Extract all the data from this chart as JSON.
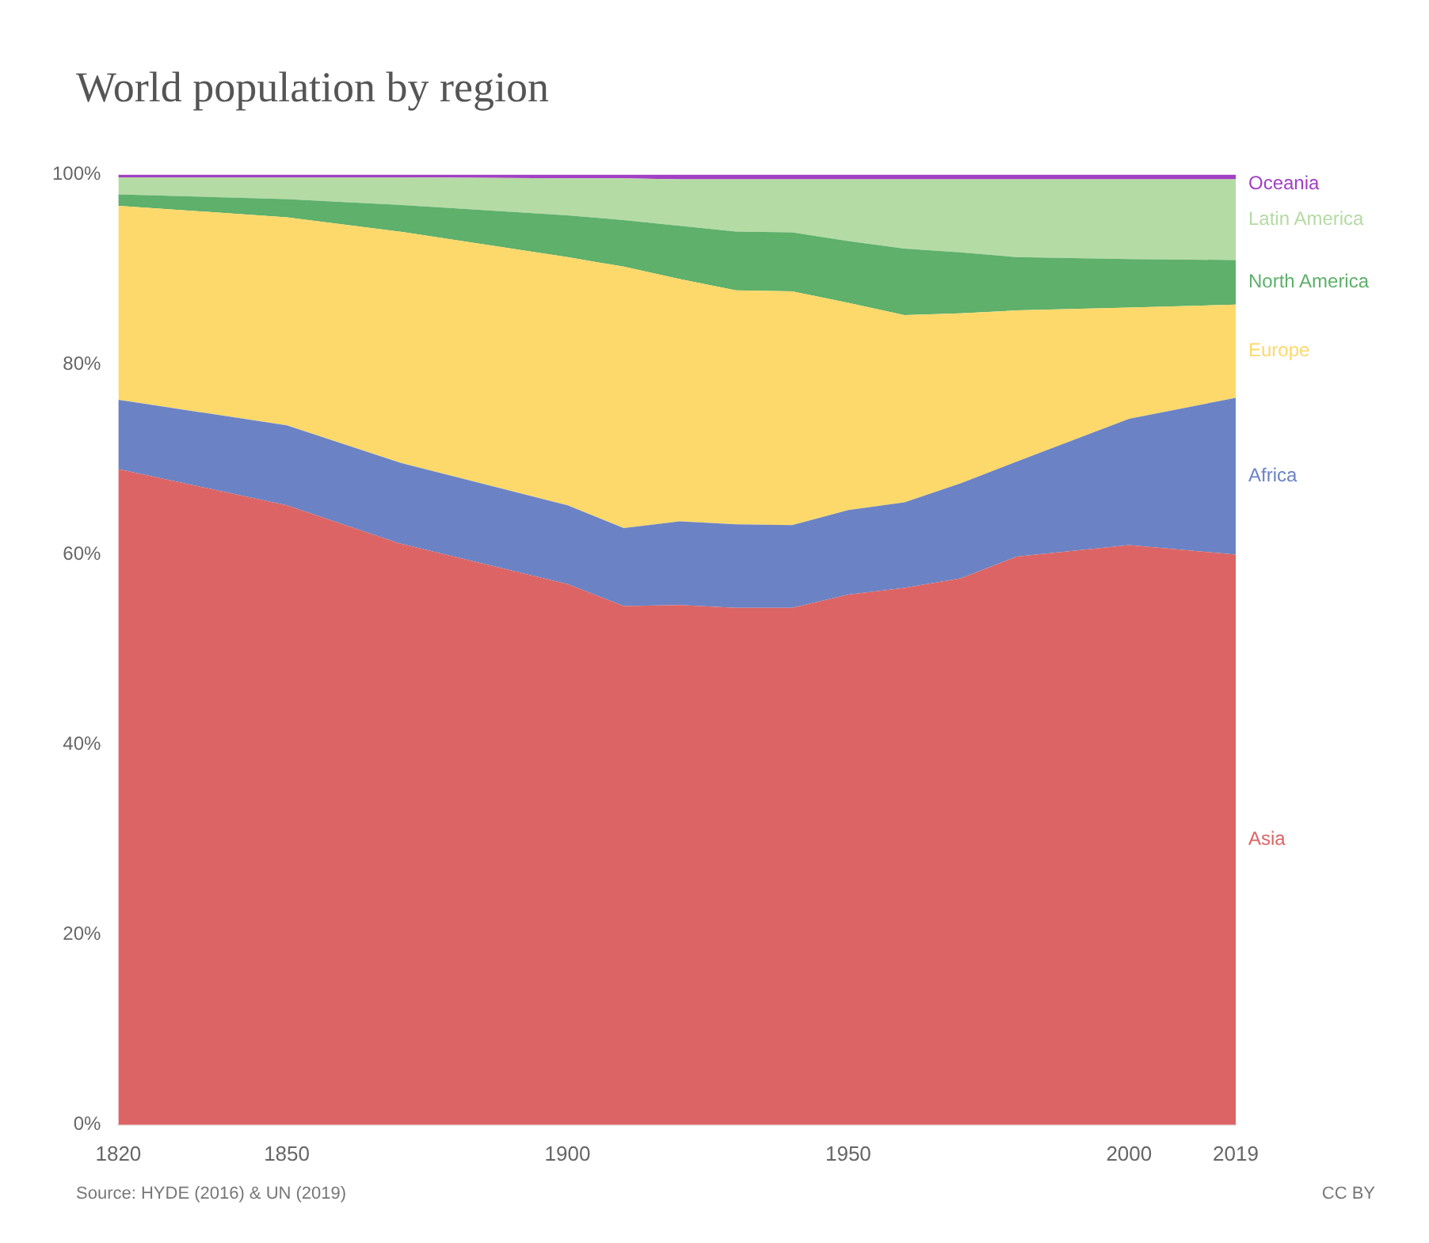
{
  "chart_data": {
    "type": "area",
    "title": "World population by region",
    "stacked": true,
    "marker": "none",
    "legend": false,
    "grid": false,
    "x": [
      1820,
      1850,
      1870,
      1900,
      1910,
      1920,
      1930,
      1940,
      1950,
      1960,
      1970,
      1980,
      2000,
      2019
    ],
    "xlim": [
      1820,
      2019
    ],
    "xticks": [
      1820,
      1850,
      1900,
      1950,
      2000,
      2019
    ],
    "ylim": [
      0,
      100
    ],
    "yticks": [
      {
        "value": 0,
        "label": "0%"
      },
      {
        "value": 20,
        "label": "20%"
      },
      {
        "value": 40,
        "label": "40%"
      },
      {
        "value": 60,
        "label": "60%"
      },
      {
        "value": 80,
        "label": "80%"
      },
      {
        "value": 100,
        "label": "100%"
      }
    ],
    "series": [
      {
        "name": "Asia",
        "color": "#dc6464",
        "values": [
          69.0,
          65.2,
          61.2,
          56.9,
          54.6,
          54.7,
          54.4,
          54.4,
          55.8,
          56.5,
          57.5,
          59.8,
          61.0,
          60.0
        ]
      },
      {
        "name": "Africa",
        "color": "#6b83c4",
        "values": [
          7.3,
          8.4,
          8.5,
          8.3,
          8.2,
          8.8,
          8.8,
          8.7,
          8.9,
          9.0,
          10.0,
          10.0,
          13.3,
          16.5
        ]
      },
      {
        "name": "Europe",
        "color": "#fdd96b",
        "values": [
          20.4,
          21.9,
          24.3,
          26.1,
          27.5,
          25.5,
          24.6,
          24.6,
          21.8,
          19.7,
          17.9,
          15.9,
          11.7,
          9.8
        ]
      },
      {
        "name": "North America",
        "color": "#5eb06a",
        "values": [
          1.2,
          1.9,
          2.8,
          4.4,
          4.9,
          5.6,
          6.2,
          6.2,
          6.5,
          7.0,
          6.4,
          5.6,
          5.1,
          4.7
        ]
      },
      {
        "name": "Latin America",
        "color": "#b5dba4",
        "values": [
          1.8,
          2.3,
          2.9,
          3.9,
          4.4,
          4.9,
          5.5,
          5.6,
          6.5,
          7.3,
          7.7,
          8.2,
          8.4,
          8.5
        ]
      },
      {
        "name": "Oceania",
        "color": "#a23fc4",
        "values": [
          0.3,
          0.3,
          0.3,
          0.4,
          0.4,
          0.5,
          0.5,
          0.5,
          0.5,
          0.5,
          0.5,
          0.5,
          0.5,
          0.5
        ]
      }
    ],
    "annotations": [
      "Source: HYDE (2016) & UN (2019)",
      "CC BY"
    ]
  }
}
